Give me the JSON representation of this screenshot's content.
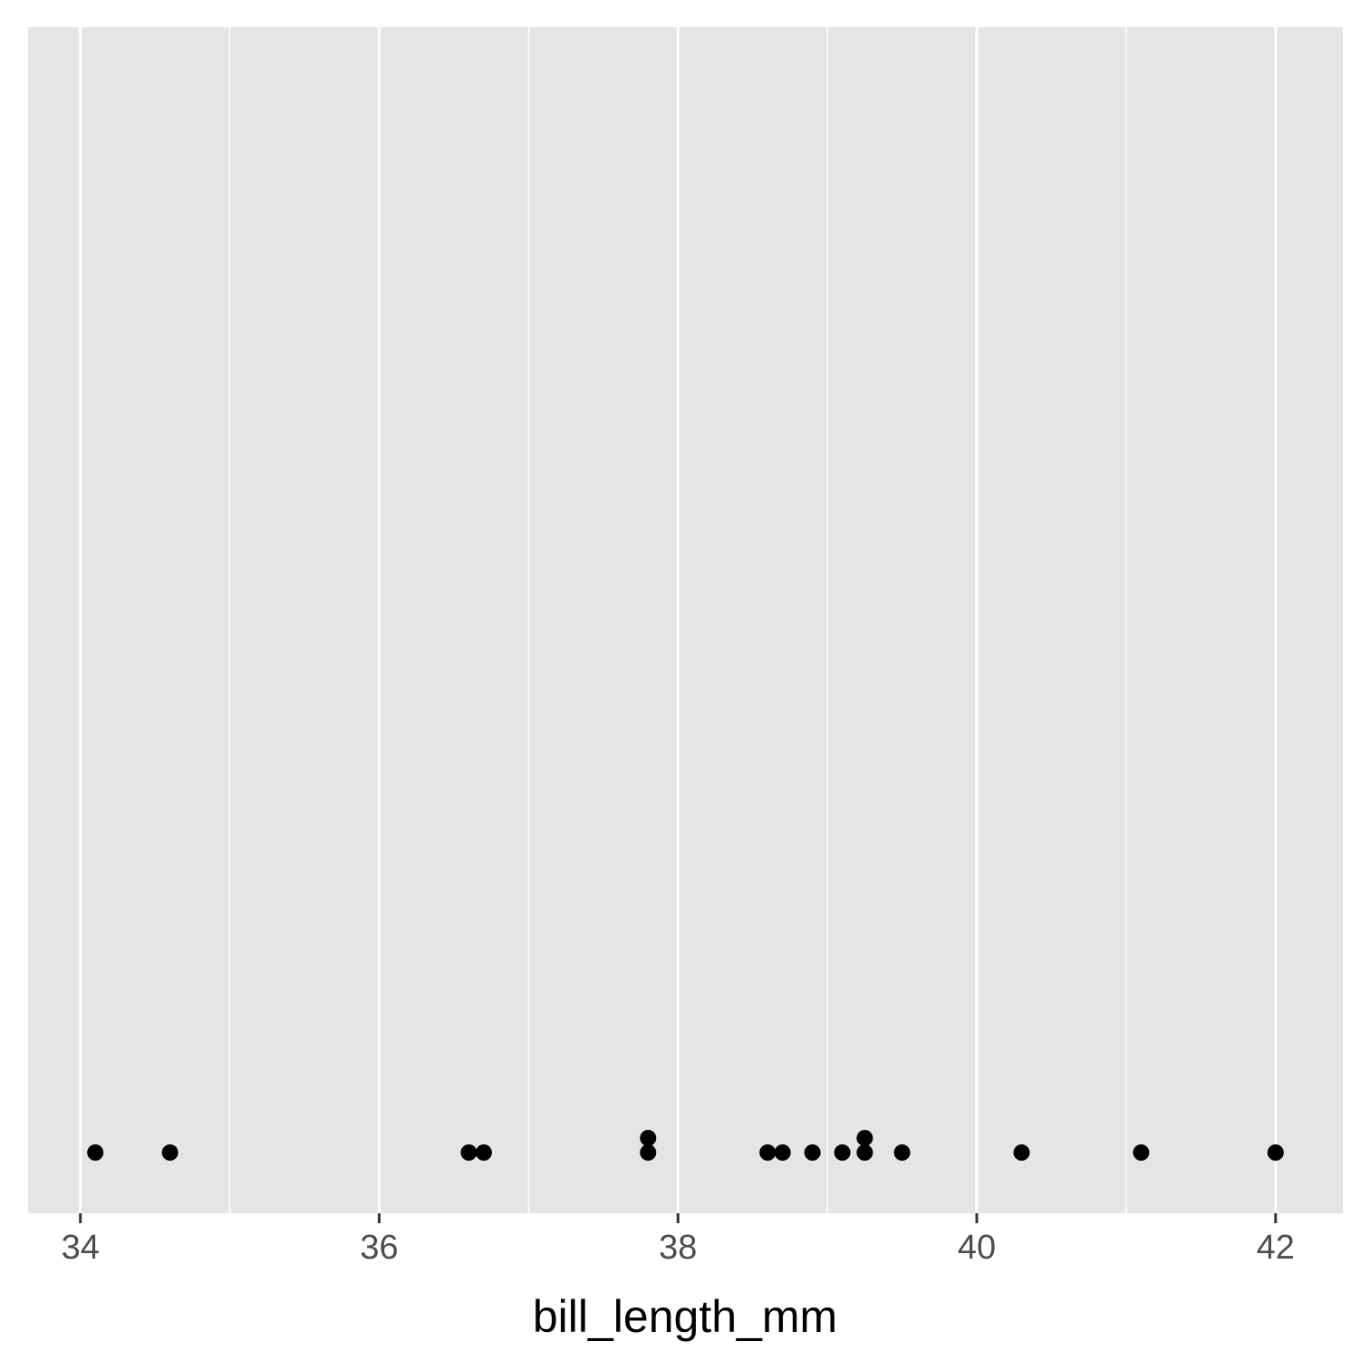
{
  "chart_data": {
    "type": "scatter",
    "title": "",
    "xlabel": "bill_length_mm",
    "ylabel": "",
    "xlim": [
      33.65,
      42.45
    ],
    "x_ticks": [
      34,
      36,
      38,
      40,
      42
    ],
    "x_tick_labels": [
      "34",
      "36",
      "38",
      "40",
      "42"
    ],
    "x_minor_ticks": [
      35,
      37,
      39,
      41
    ],
    "y_axis_shown": false,
    "grid": "vertical",
    "stack_unit": 1,
    "points": [
      {
        "x": 34.1,
        "stack": 0
      },
      {
        "x": 34.6,
        "stack": 0
      },
      {
        "x": 36.6,
        "stack": 0
      },
      {
        "x": 36.7,
        "stack": 0
      },
      {
        "x": 37.8,
        "stack": 0
      },
      {
        "x": 37.8,
        "stack": 1
      },
      {
        "x": 38.6,
        "stack": 0
      },
      {
        "x": 38.7,
        "stack": 0
      },
      {
        "x": 38.9,
        "stack": 0
      },
      {
        "x": 39.1,
        "stack": 0
      },
      {
        "x": 39.25,
        "stack": 0
      },
      {
        "x": 39.25,
        "stack": 1
      },
      {
        "x": 39.5,
        "stack": 0
      },
      {
        "x": 40.3,
        "stack": 0
      },
      {
        "x": 41.1,
        "stack": 0
      },
      {
        "x": 42.0,
        "stack": 0
      }
    ],
    "colors": {
      "panel": "#e5e5e5",
      "grid_major": "#ffffff",
      "point": "#000000",
      "tick_mark": "#333333"
    }
  }
}
